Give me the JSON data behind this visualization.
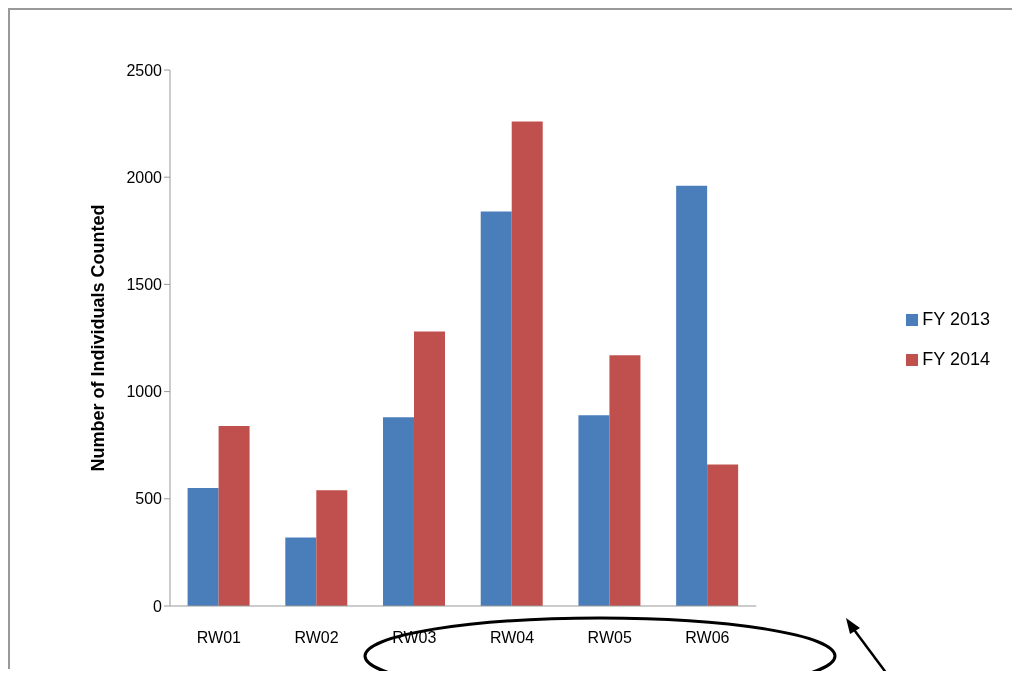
{
  "chart_data": {
    "type": "bar",
    "ylabel": "Number of Individuals Counted",
    "categories": [
      "RW01",
      "RW02",
      "RW03",
      "RW04",
      "RW05",
      "RW06"
    ],
    "series": [
      {
        "name": "FY 2013",
        "color": "#4a7ebb",
        "values": [
          550,
          320,
          880,
          1840,
          890,
          1960
        ]
      },
      {
        "name": "FY 2014",
        "color": "#c0504d",
        "values": [
          840,
          540,
          1280,
          2260,
          1170,
          660
        ]
      }
    ],
    "ylim": [
      0,
      2500
    ],
    "yticks": [
      0,
      500,
      1000,
      1500,
      2000,
      2500
    ],
    "grid": false,
    "legend": "right"
  }
}
